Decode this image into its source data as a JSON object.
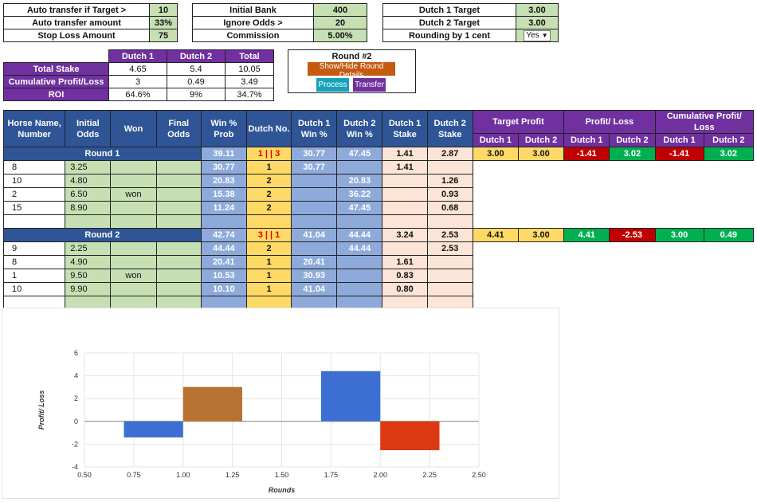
{
  "settings_left": [
    {
      "label": "Auto transfer if Target >",
      "value": "10"
    },
    {
      "label": "Auto transfer amount",
      "value": "33%"
    },
    {
      "label": "Stop Loss Amount",
      "value": "75"
    }
  ],
  "settings_mid": [
    {
      "label": "Initial Bank",
      "value": "400"
    },
    {
      "label": "Ignore Odds >",
      "value": "20"
    },
    {
      "label": "Commission",
      "value": "5.00%"
    }
  ],
  "settings_right": [
    {
      "label": "Dutch 1 Target",
      "value": "3.00"
    },
    {
      "label": "Dutch 2 Target",
      "value": "3.00"
    },
    {
      "label": "Rounding by 1 cent",
      "value": "Yes"
    }
  ],
  "summary": {
    "headers": [
      "Dutch 1",
      "Dutch 2",
      "Total"
    ],
    "rows": [
      {
        "label": "Total Stake",
        "values": [
          "4.65",
          "5.4",
          "10.05"
        ]
      },
      {
        "label": "Cumulative Profit/Loss",
        "values": [
          "3",
          "0.49",
          "3.49"
        ]
      },
      {
        "label": "ROI",
        "values": [
          "64.6%",
          "9%",
          "34.7%"
        ]
      }
    ]
  },
  "round_panel": {
    "title": "Round #2",
    "show_hide_label": "Show/Hide Round Details",
    "process_label": "Process",
    "transfer_label": "Transfer"
  },
  "main_table": {
    "headers": {
      "horse": "Horse Name, Number",
      "initial_odds": "Initial Odds",
      "won": "Won",
      "final_odds": "Final Odds",
      "win_prob": "Win % Prob",
      "dutch_no": "Dutch No.",
      "d1_win": "Dutch 1 Win %",
      "d2_win": "Dutch 2 Win %",
      "d1_stake": "Dutch 1 Stake",
      "d2_stake": "Dutch 2 Stake",
      "target_profit": "Target Profit",
      "profit_loss": "Profit/ Loss",
      "cum_profit": "Cumulative Profit/ Loss",
      "sub_d1": "Dutch 1",
      "sub_d2": "Dutch 2"
    },
    "rounds": [
      {
        "label": "Round 1",
        "prob": "39.11",
        "dutch": "1 | | 3",
        "d1w": "30.77",
        "d2w": "47.45",
        "d1s": "1.41",
        "d2s": "2.87",
        "tp1": "3.00",
        "tp2": "3.00",
        "pl1": "-1.41",
        "pl2": "3.02",
        "cp1": "-1.41",
        "cp2": "3.02",
        "horses": [
          {
            "horse": "8",
            "odds": "3.25",
            "won": "",
            "prob": "30.77",
            "dutch": "1",
            "d1w": "30.77",
            "d2w": "",
            "d1s": "1.41",
            "d2s": ""
          },
          {
            "horse": "10",
            "odds": "4.80",
            "won": "",
            "prob": "20.83",
            "dutch": "2",
            "d1w": "",
            "d2w": "20.83",
            "d1s": "",
            "d2s": "1.26"
          },
          {
            "horse": "2",
            "odds": "6.50",
            "won": "won",
            "prob": "15.38",
            "dutch": "2",
            "d1w": "",
            "d2w": "36.22",
            "d1s": "",
            "d2s": "0.93"
          },
          {
            "horse": "15",
            "odds": "8.90",
            "won": "",
            "prob": "11.24",
            "dutch": "2",
            "d1w": "",
            "d2w": "47.45",
            "d1s": "",
            "d2s": "0.68"
          },
          {
            "horse": "",
            "odds": "",
            "won": "",
            "prob": "",
            "dutch": "",
            "d1w": "",
            "d2w": "",
            "d1s": "",
            "d2s": ""
          }
        ]
      },
      {
        "label": "Round 2",
        "prob": "42.74",
        "dutch": "3 | | 1",
        "d1w": "41.04",
        "d2w": "44.44",
        "d1s": "3.24",
        "d2s": "2.53",
        "tp1": "4.41",
        "tp2": "3.00",
        "pl1": "4.41",
        "pl2": "-2.53",
        "cp1": "3.00",
        "cp2": "0.49",
        "horses": [
          {
            "horse": "9",
            "odds": "2.25",
            "won": "",
            "prob": "44.44",
            "dutch": "2",
            "d1w": "",
            "d2w": "44.44",
            "d1s": "",
            "d2s": "2.53"
          },
          {
            "horse": "8",
            "odds": "4.90",
            "won": "",
            "prob": "20.41",
            "dutch": "1",
            "d1w": "20.41",
            "d2w": "",
            "d1s": "1.61",
            "d2s": ""
          },
          {
            "horse": "1",
            "odds": "9.50",
            "won": "won",
            "prob": "10.53",
            "dutch": "1",
            "d1w": "30.93",
            "d2w": "",
            "d1s": "0.83",
            "d2s": ""
          },
          {
            "horse": "10",
            "odds": "9.90",
            "won": "",
            "prob": "10.10",
            "dutch": "1",
            "d1w": "41.04",
            "d2w": "",
            "d1s": "0.80",
            "d2s": ""
          },
          {
            "horse": "",
            "odds": "",
            "won": "",
            "prob": "",
            "dutch": "",
            "d1w": "",
            "d2w": "",
            "d1s": "",
            "d2s": ""
          }
        ]
      }
    ]
  },
  "chart_data": {
    "type": "bar",
    "xlabel": "Rounds",
    "ylabel": "Profit/ Loss",
    "xlim": [
      0.5,
      2.5
    ],
    "ylim": [
      -4,
      6
    ],
    "xticks": [
      "0.50",
      "0.75",
      "1.00",
      "1.25",
      "1.50",
      "1.75",
      "2.00",
      "2.25",
      "2.50"
    ],
    "yticks": [
      "6",
      "4",
      "2",
      "0",
      "-2",
      "-4"
    ],
    "bars": [
      {
        "x0": 0.7,
        "x1": 1.0,
        "value": -1.41,
        "color": "#3c6fd1"
      },
      {
        "x0": 1.0,
        "x1": 1.3,
        "value": 3.02,
        "color": "#b87333"
      },
      {
        "x0": 1.7,
        "x1": 2.0,
        "value": 4.41,
        "color": "#3c6fd1"
      },
      {
        "x0": 2.0,
        "x1": 2.3,
        "value": -2.53,
        "color": "#dc3912"
      }
    ],
    "grid": true,
    "legend": "none"
  },
  "colors": {
    "purple": "#7030a0",
    "blue_header": "#2f5597",
    "green_cell": "#c6e0b4",
    "orange_button": "#c55a11",
    "teal_button": "#17a2b8",
    "purple_button": "#7030a0"
  }
}
